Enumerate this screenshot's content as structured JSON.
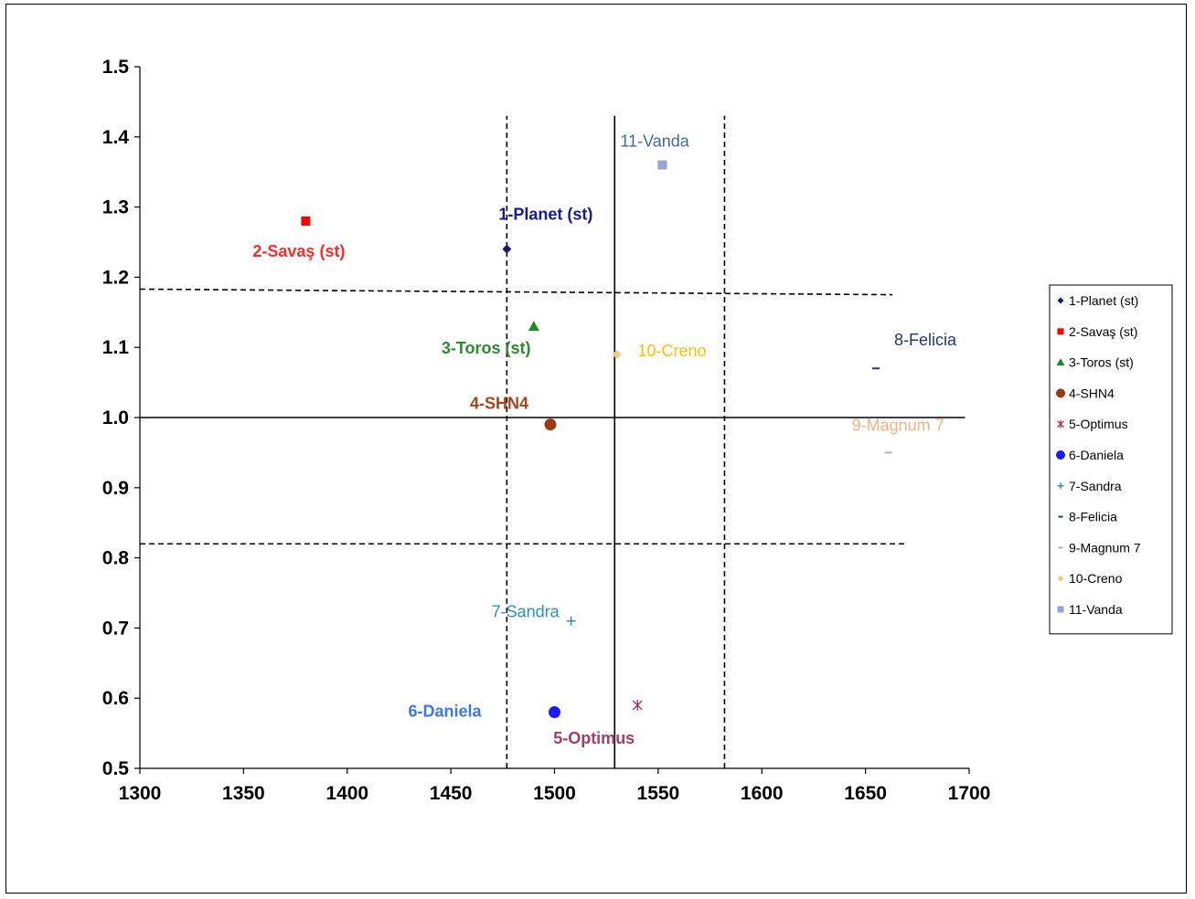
{
  "chart_data": {
    "type": "scatter",
    "title": "",
    "xlabel": "",
    "ylabel": "",
    "xlim": [
      1300,
      1700
    ],
    "ylim": [
      0.5,
      1.5
    ],
    "x_ticks": [
      "1300",
      "1350",
      "1400",
      "1450",
      "1500",
      "1550",
      "1600",
      "1650",
      "1700"
    ],
    "y_ticks": [
      "0.5",
      "0.6",
      "0.7",
      "0.8",
      "0.9",
      "1.0",
      "1.1",
      "1.2",
      "1.3",
      "1.4",
      "1.5"
    ],
    "legend_position": "right",
    "series": [
      {
        "name": "1-Planet (st)",
        "label": "1-Planet (st)",
        "x": 1477,
        "y": 1.24,
        "color": "#1a1a6e",
        "marker": "diamond",
        "bold": true
      },
      {
        "name": "2-Savaş (st)",
        "label": "2-Savaş (st)",
        "x": 1380,
        "y": 1.28,
        "color": "#ff0000",
        "marker": "square",
        "bold": true
      },
      {
        "name": "3-Toros (st)",
        "label": "3-Toros (st)",
        "x": 1490,
        "y": 1.13,
        "color": "#1f8a1f",
        "marker": "triangle",
        "bold": true
      },
      {
        "name": "4-SHN4",
        "label": "4-SHN4",
        "x": 1498,
        "y": 0.99,
        "color": "#9c3a12",
        "marker": "circle",
        "bold": true
      },
      {
        "name": "5-Optimus",
        "label": "5-Optimus",
        "x": 1540,
        "y": 0.59,
        "color": "#993366",
        "marker": "asterisk",
        "bold": true
      },
      {
        "name": "6-Daniela",
        "label": "6-Daniela",
        "x": 1500,
        "y": 0.58,
        "color": "#1a1aff",
        "marker": "circle",
        "bold": true
      },
      {
        "name": "7-Sandra",
        "label": "7-Sandra",
        "x": 1508,
        "y": 0.71,
        "color": "#1f7fa8",
        "marker": "plus",
        "bold": false
      },
      {
        "name": "8-Felicia",
        "label": "8-Felicia",
        "x": 1655,
        "y": 1.07,
        "color": "#1f3a70",
        "marker": "dash",
        "bold": false
      },
      {
        "name": "9-Magnum 7",
        "label": "9-Magnum  7",
        "x": 1661,
        "y": 0.95,
        "color": "#b3b3b3",
        "marker": "dash",
        "bold": false
      },
      {
        "name": "10-Creno",
        "label": "10-Creno",
        "x": 1530,
        "y": 1.09,
        "color": "#f7c97a",
        "marker": "diamond",
        "bold": false
      },
      {
        "name": "11-Vanda",
        "label": "11-Vanda",
        "x": 1552,
        "y": 1.36,
        "color": "#8fa6d6",
        "marker": "square",
        "bold": false
      }
    ],
    "reference_lines": [
      {
        "orientation": "vertical",
        "x": 1477,
        "style": "dashed",
        "y_from": 0.5,
        "y_to": 1.43
      },
      {
        "orientation": "vertical",
        "x": 1529,
        "style": "solid",
        "y_from": 0.5,
        "y_to": 1.43
      },
      {
        "orientation": "vertical",
        "x": 1582,
        "style": "dashed",
        "y_from": 0.5,
        "y_to": 1.43
      },
      {
        "orientation": "horizontal",
        "y": 1.0,
        "style": "solid",
        "x_from": 1300,
        "x_to": 1698
      },
      {
        "orientation": "horizontal",
        "y": 1.183,
        "y_end": 1.175,
        "style": "dashed",
        "x_from": 1300,
        "x_to": 1663
      },
      {
        "orientation": "horizontal",
        "y": 0.82,
        "y_end": 0.82,
        "style": "dashed",
        "x_from": 1300,
        "x_to": 1670
      }
    ]
  },
  "label_text_colors": {
    "1-Planet (st)": "#1a1a8a",
    "2-Savaş (st)": "#ff2a2a",
    "3-Toros (st)": "#2e8b2e",
    "4-SHN4": "#a3461a",
    "5-Optimus": "#9e3f6e",
    "6-Daniela": "#3b78e7",
    "7-Sandra": "#2f8fc0",
    "8-Felicia": "#1f3a70",
    "9-Magnum  7": "#f4b183",
    "10-Creno": "#ffc000",
    "11-Vanda": "#3d6a99"
  }
}
